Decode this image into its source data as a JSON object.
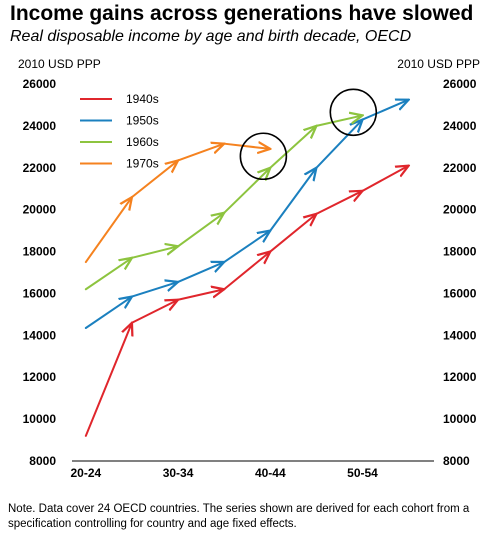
{
  "title": "Income gains across generations have slowed",
  "subtitle": "Real disposable income by age and birth decade, OECD",
  "note": "Note. Data cover 24 OECD countries. The series shown are derived for each cohort from a specification controlling for country and age fixed effects.",
  "chart_data": {
    "type": "line",
    "y_unit_left": "2010 USD PPP",
    "y_unit_right": "2010 USD PPP",
    "ylim": [
      8000,
      26000
    ],
    "yticks": [
      "8000",
      "10000",
      "12000",
      "14000",
      "16000",
      "18000",
      "20000",
      "22000",
      "24000",
      "26000"
    ],
    "xticks": [
      {
        "label": "20-24",
        "x": 0
      },
      {
        "label": "30-34",
        "x": 2
      },
      {
        "label": "40-44",
        "x": 4
      },
      {
        "label": "50-54",
        "x": 6
      }
    ],
    "legend_position": "top-left",
    "series": [
      {
        "name": "1940s",
        "color": "#e0262c",
        "points": [
          [
            0,
            9200
          ],
          [
            1,
            14600
          ],
          [
            2,
            15700
          ],
          [
            3,
            16200
          ],
          [
            4,
            18000
          ],
          [
            5,
            19800
          ],
          [
            6,
            20900
          ],
          [
            7,
            22100
          ]
        ]
      },
      {
        "name": "1950s",
        "color": "#1b80bf",
        "points": [
          [
            0,
            14350
          ],
          [
            1,
            15850
          ],
          [
            2,
            16550
          ],
          [
            3,
            17500
          ],
          [
            4,
            19000
          ],
          [
            5,
            22000
          ],
          [
            6,
            24300
          ],
          [
            7,
            25250
          ]
        ]
      },
      {
        "name": "1960s",
        "color": "#8dc43f",
        "points": [
          [
            0,
            16200
          ],
          [
            1,
            17700
          ],
          [
            2,
            18250
          ],
          [
            3,
            19850
          ],
          [
            4,
            22000
          ],
          [
            5,
            24000
          ],
          [
            6,
            24500
          ]
        ]
      },
      {
        "name": "1970s",
        "color": "#f5821f",
        "points": [
          [
            0,
            17500
          ],
          [
            1,
            20600
          ],
          [
            2,
            22350
          ],
          [
            3,
            23150
          ],
          [
            4,
            22900
          ]
        ]
      }
    ],
    "annotations": [
      {
        "shape": "circle",
        "x": 3.85,
        "y": 22550
      },
      {
        "shape": "circle",
        "x": 5.8,
        "y": 24650
      }
    ]
  }
}
